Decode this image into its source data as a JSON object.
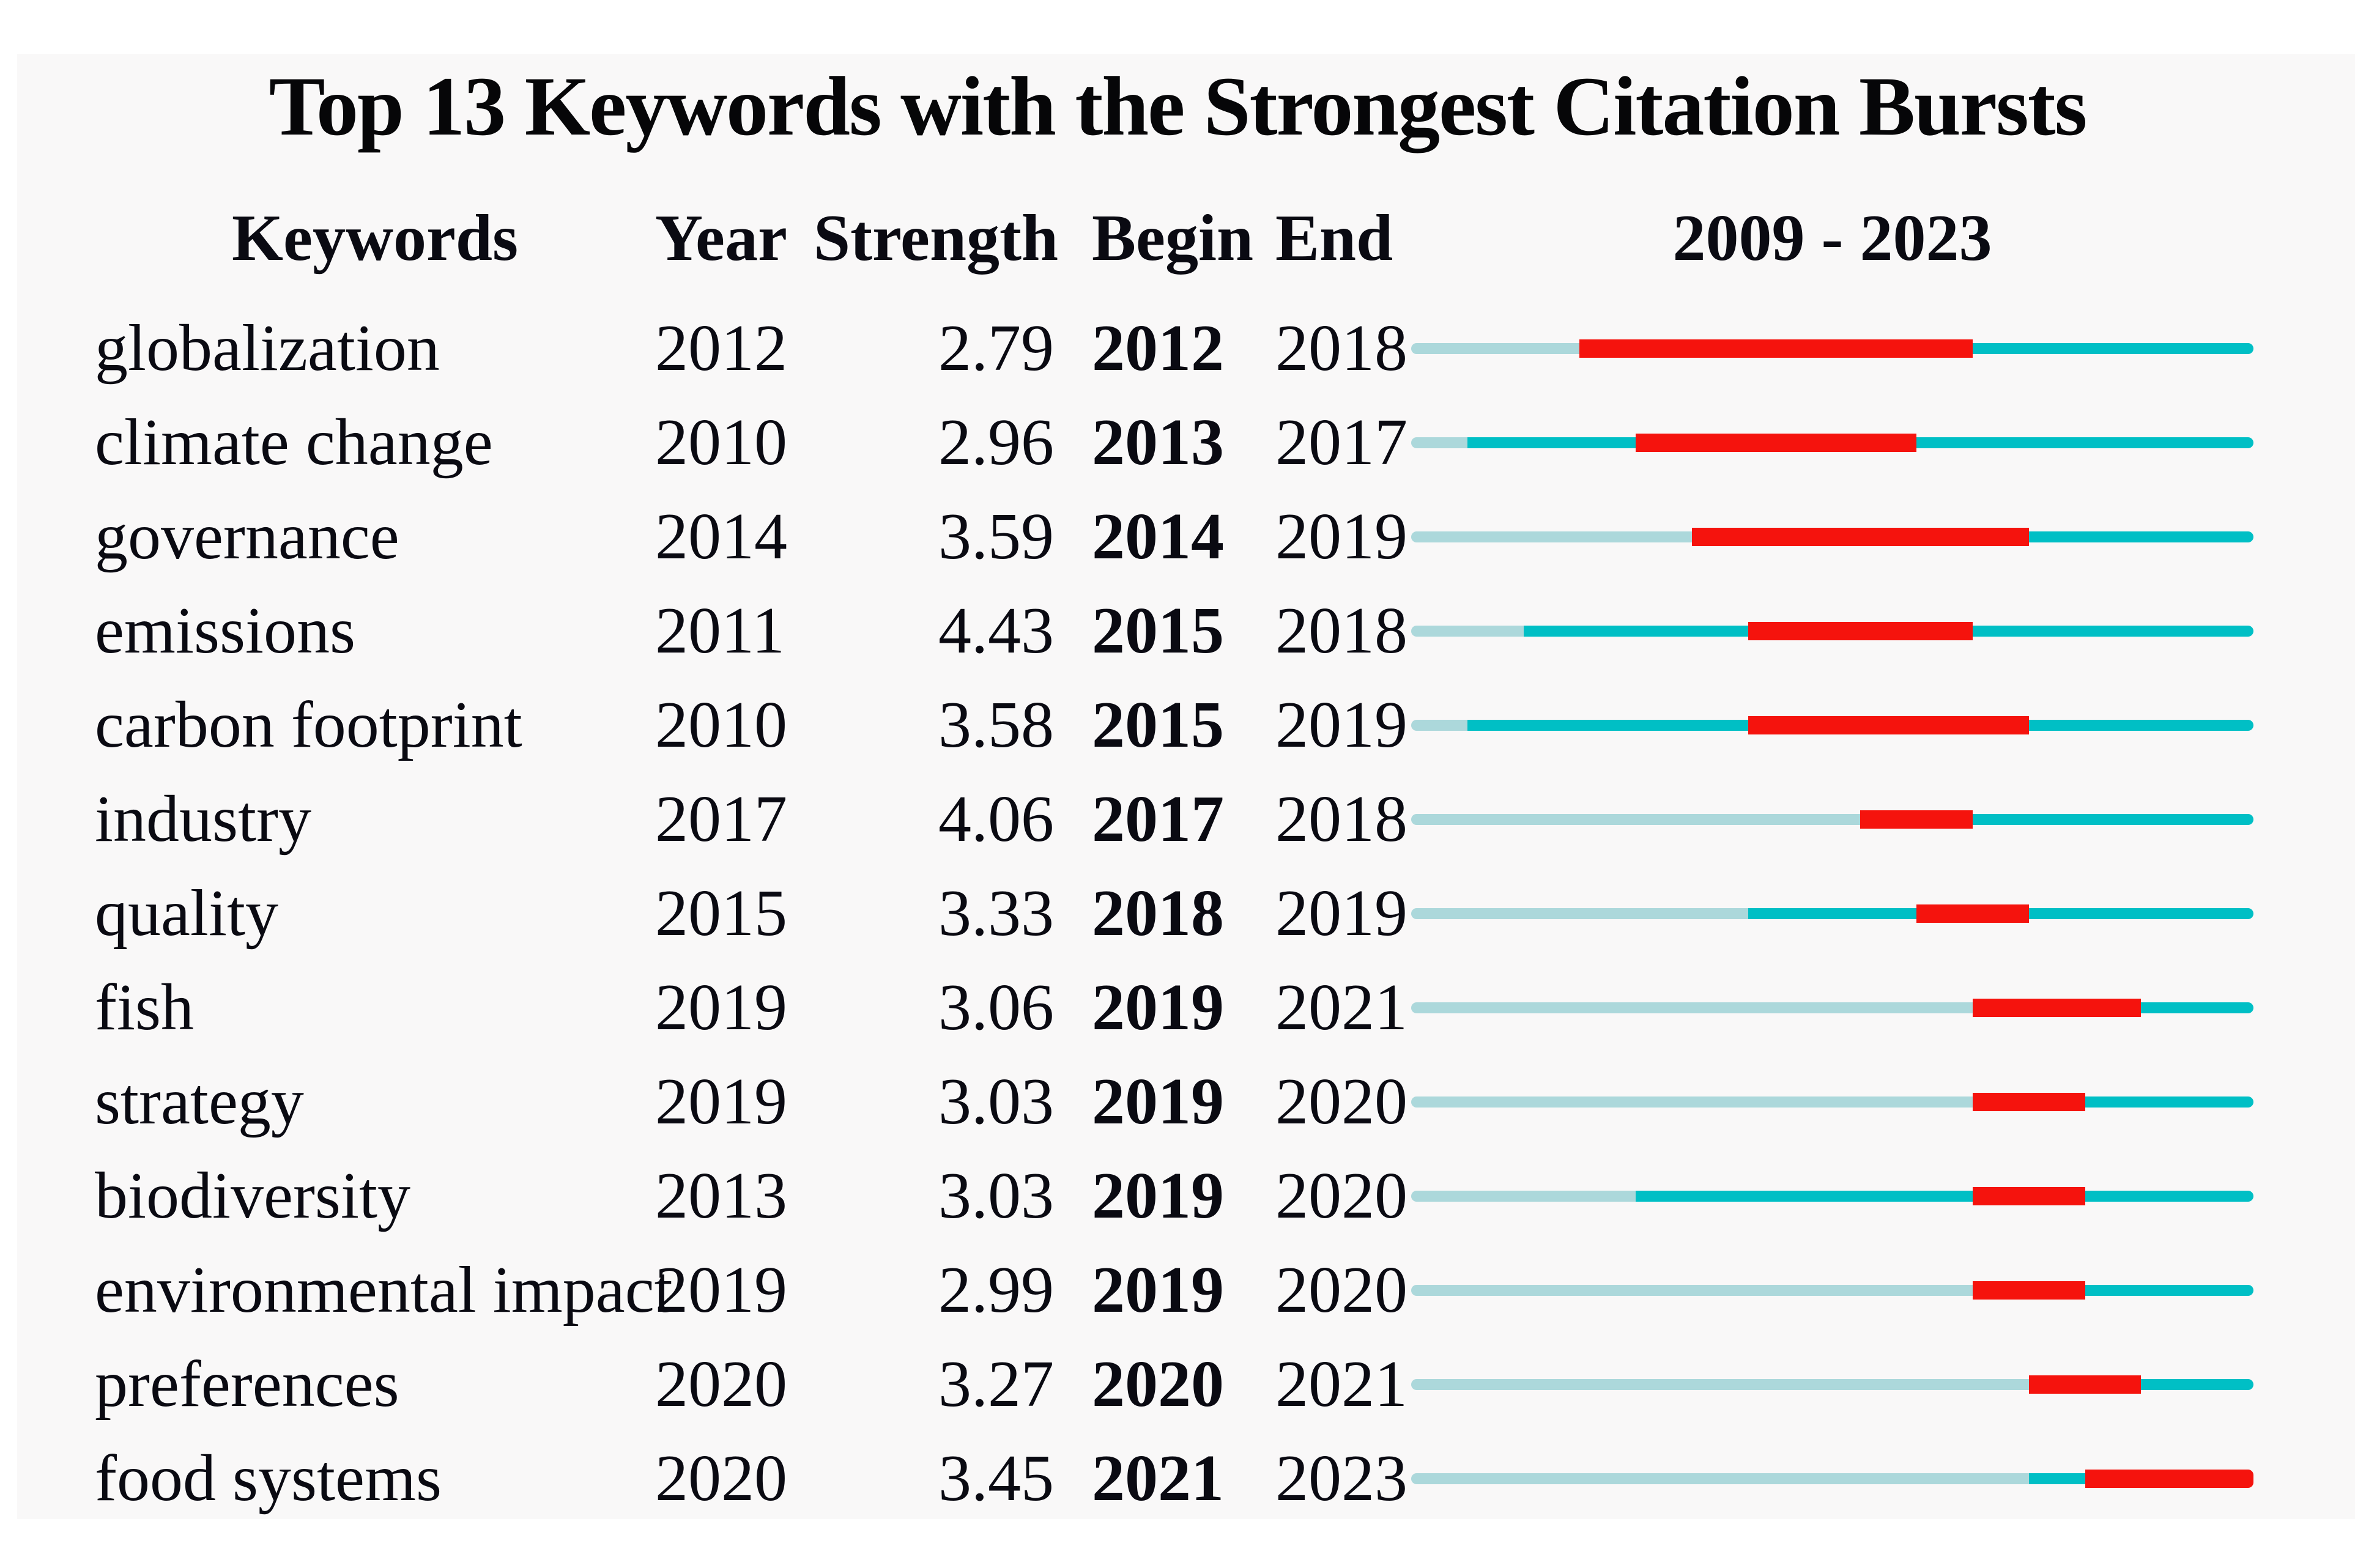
{
  "title": "Top 13 Keywords with the Strongest Citation Bursts",
  "header": {
    "keywords": "Keywords",
    "year": "Year",
    "strength": "Strength",
    "begin": "Begin",
    "end": "End",
    "period": "2009 - 2023"
  },
  "colors": {
    "pre_appearance_bar": "#ACD8DB",
    "active_years_bar": "#00BFC5",
    "burst_bar": "#F5130D",
    "text": "#0A0A12",
    "background": "#F9F8F8"
  },
  "chart_data": {
    "type": "burst-timeline",
    "title": "Top 13 Keywords with the Strongest Citation Bursts",
    "period": {
      "start_year": 2009,
      "end_year": 2023
    },
    "columns": [
      "Keywords",
      "Year",
      "Strength",
      "Begin",
      "End"
    ],
    "bar_encoding": {
      "pale_segment": "years before keyword first appearance",
      "teal_segment": "years keyword active without burst",
      "red_segment": "citation burst interval (Begin–End)"
    },
    "rows": [
      {
        "keyword": "globalization",
        "year": 2012,
        "strength": 2.79,
        "begin": 2012,
        "end": 2018
      },
      {
        "keyword": "climate change",
        "year": 2010,
        "strength": 2.96,
        "begin": 2013,
        "end": 2017
      },
      {
        "keyword": "governance",
        "year": 2014,
        "strength": 3.59,
        "begin": 2014,
        "end": 2019
      },
      {
        "keyword": "emissions",
        "year": 2011,
        "strength": 4.43,
        "begin": 2015,
        "end": 2018
      },
      {
        "keyword": "carbon footprint",
        "year": 2010,
        "strength": 3.58,
        "begin": 2015,
        "end": 2019
      },
      {
        "keyword": "industry",
        "year": 2017,
        "strength": 4.06,
        "begin": 2017,
        "end": 2018
      },
      {
        "keyword": "quality",
        "year": 2015,
        "strength": 3.33,
        "begin": 2018,
        "end": 2019
      },
      {
        "keyword": "fish",
        "year": 2019,
        "strength": 3.06,
        "begin": 2019,
        "end": 2021
      },
      {
        "keyword": "strategy",
        "year": 2019,
        "strength": 3.03,
        "begin": 2019,
        "end": 2020
      },
      {
        "keyword": "biodiversity",
        "year": 2013,
        "strength": 3.03,
        "begin": 2019,
        "end": 2020
      },
      {
        "keyword": "environmental impact",
        "year": 2019,
        "strength": 2.99,
        "begin": 2019,
        "end": 2020
      },
      {
        "keyword": "preferences",
        "year": 2020,
        "strength": 3.27,
        "begin": 2020,
        "end": 2021
      },
      {
        "keyword": "food systems",
        "year": 2020,
        "strength": 3.45,
        "begin": 2021,
        "end": 2023
      }
    ]
  }
}
